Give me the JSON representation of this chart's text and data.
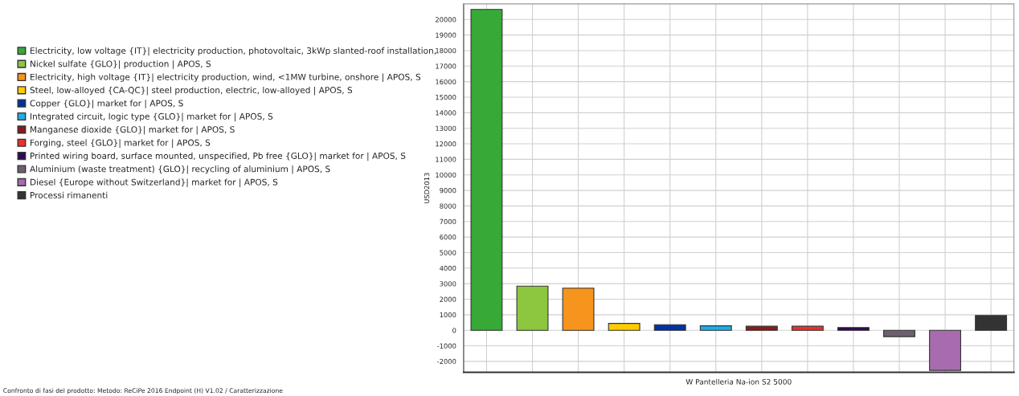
{
  "chart_data": {
    "type": "bar",
    "categories": [
      "W Pantelleria Na-ion S2 5000"
    ],
    "ylabel": "USD2013",
    "ylim": [
      -2700,
      21000
    ],
    "yticks": [
      -2000,
      -1000,
      0,
      1000,
      2000,
      3000,
      4000,
      5000,
      6000,
      7000,
      8000,
      9000,
      10000,
      11000,
      12000,
      13000,
      14000,
      15000,
      16000,
      17000,
      18000,
      19000,
      20000
    ],
    "grid": true,
    "legend": "left",
    "annotations": [
      "Confronto di fasi del prodotto: Metodo: ReCiPe 2016 Endpoint (H) V1.02 / Caratterizzazione"
    ],
    "series": [
      {
        "name": "Electricity, low voltage {IT}| electricity production, photovoltaic, 3kWp slanted-roof installation,",
        "color": "#36a936",
        "values": [
          20650
        ]
      },
      {
        "name": "Nickel sulfate {GLO}| production | APOS, S",
        "color": "#8dc63f",
        "values": [
          2840
        ]
      },
      {
        "name": "Electricity, high voltage {IT}| electricity production, wind, <1MW turbine, onshore | APOS, S",
        "color": "#f7941d",
        "values": [
          2710
        ]
      },
      {
        "name": "Steel, low-alloyed {CA-QC}| steel production, electric, low-alloyed | APOS, S",
        "color": "#ffcc00",
        "values": [
          440
        ]
      },
      {
        "name": "Copper {GLO}| market for | APOS, S",
        "color": "#0033a0",
        "values": [
          360
        ]
      },
      {
        "name": "Integrated circuit, logic type {GLO}| market for | APOS, S",
        "color": "#1eaee8",
        "values": [
          290
        ]
      },
      {
        "name": "Manganese dioxide {GLO}| market for | APOS, S",
        "color": "#8b1a1a",
        "values": [
          260
        ]
      },
      {
        "name": "Forging, steel {GLO}| market for | APOS, S",
        "color": "#e8322a",
        "values": [
          260
        ]
      },
      {
        "name": "Printed wiring board, surface mounted, unspecified, Pb free {GLO}| market for | APOS, S",
        "color": "#2e0854",
        "values": [
          180
        ]
      },
      {
        "name": "Aluminium (waste treatment) {GLO}| recycling of aluminium | APOS, S",
        "color": "#6e5f6e",
        "values": [
          -410
        ]
      },
      {
        "name": "Diesel {Europe without Switzerland}| market for | APOS, S",
        "color": "#a86bb0",
        "values": [
          -2580
        ]
      },
      {
        "name": "Processi rimanenti",
        "color": "#333333",
        "values": [
          950
        ]
      }
    ]
  }
}
